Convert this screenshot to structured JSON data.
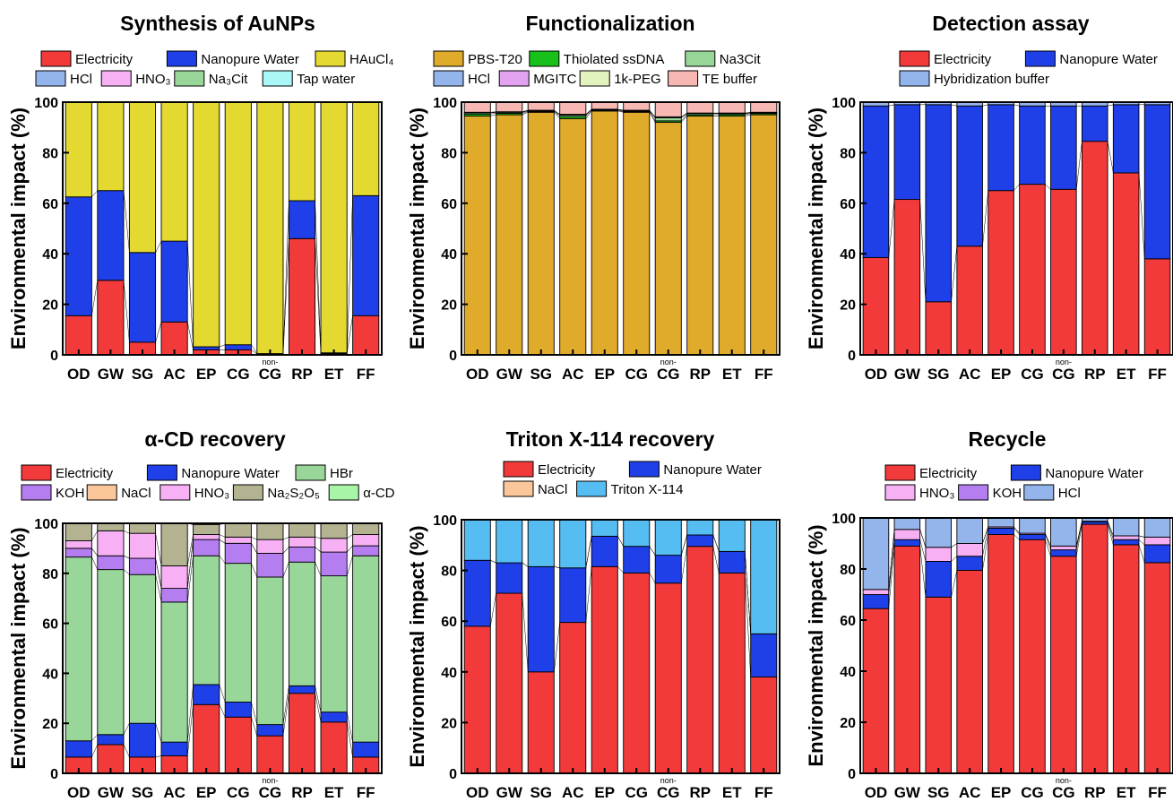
{
  "chart_data": [
    {
      "type": "bar",
      "stacked": true,
      "title": "Synthesis of AuNPs",
      "ylabel": "Environmental impact (%)",
      "ylim": [
        0,
        100
      ],
      "yticks": [
        "0",
        "20",
        "40",
        "60",
        "80",
        "100"
      ],
      "categories": [
        "OD",
        "GW",
        "SG",
        "AC",
        "EP",
        "CG",
        "CG",
        "RP",
        "ET",
        "FF"
      ],
      "category_superscripts": [
        "",
        "",
        "",
        "",
        "",
        "",
        "non-",
        "",
        "",
        ""
      ],
      "series": [
        {
          "name": "Electricity",
          "color": "#f23a3a",
          "values": [
            15.5,
            29.5,
            5,
            13,
            2,
            2,
            0.3,
            46,
            0.5,
            15.5
          ]
        },
        {
          "name": "Nanopure Water",
          "color": "#1f3fe8",
          "values": [
            47,
            35.5,
            35.5,
            32,
            1.2,
            2,
            0.2,
            15,
            0.3,
            47.5
          ]
        },
        {
          "name": "HAuCl₄",
          "color": "#e3d930",
          "values": [
            37.5,
            35,
            59.5,
            55,
            96.8,
            96,
            99.5,
            39,
            99.2,
            37
          ]
        },
        {
          "name": "HCl",
          "color": "#94b4ec",
          "values": [
            0,
            0,
            0,
            0,
            0,
            0,
            0,
            0,
            0,
            0
          ]
        },
        {
          "name": "HNO₃",
          "color": "#f7b0f4",
          "values": [
            0,
            0,
            0,
            0,
            0,
            0,
            0,
            0,
            0,
            0
          ]
        },
        {
          "name": "Na₃Cit",
          "color": "#98d69a",
          "values": [
            0,
            0,
            0,
            0,
            0,
            0,
            0,
            0,
            0,
            0
          ]
        },
        {
          "name": "Tap water",
          "color": "#a9f7f7",
          "values": [
            0,
            0,
            0,
            0,
            0,
            0,
            0,
            0,
            0,
            0
          ]
        }
      ],
      "legend_rows": [
        [
          "Electricity",
          "Nanopure Water",
          "HAuCl₄"
        ],
        [
          "HCl",
          "HNO₃",
          "Na₃Cit",
          "Tap water"
        ]
      ]
    },
    {
      "type": "bar",
      "stacked": true,
      "title": "Functionalization",
      "ylabel": "Environmental impact (%)",
      "ylim": [
        0,
        100
      ],
      "yticks": [
        "0",
        "20",
        "40",
        "60",
        "80",
        "100"
      ],
      "categories": [
        "OD",
        "GW",
        "SG",
        "AC",
        "EP",
        "CG",
        "CG",
        "RP",
        "ET",
        "FF"
      ],
      "category_superscripts": [
        "",
        "",
        "",
        "",
        "",
        "",
        "non-",
        "",
        "",
        ""
      ],
      "series": [
        {
          "name": "PBS-T20",
          "color": "#e0ab2b",
          "values": [
            94.5,
            95,
            96,
            93.5,
            96.5,
            96,
            92,
            94.5,
            94.5,
            95
          ]
        },
        {
          "name": "Thiolated ssDNA",
          "color": "#18c11a",
          "values": [
            0.8,
            0.6,
            0.3,
            0.8,
            0.3,
            0.3,
            0.6,
            0.5,
            0.6,
            0.5
          ]
        },
        {
          "name": "Na3Cit",
          "color": "#98d69a",
          "values": [
            0.5,
            0.4,
            0.3,
            0.6,
            0.3,
            0.3,
            1.2,
            0.5,
            0.4,
            0.3
          ]
        },
        {
          "name": "HCl",
          "color": "#94b4ec",
          "values": [
            0,
            0,
            0,
            0,
            0,
            0,
            0,
            0,
            0,
            0
          ]
        },
        {
          "name": "MGITC",
          "color": "#e2a2ef",
          "values": [
            0,
            0,
            0,
            0,
            0,
            0,
            0,
            0,
            0,
            0
          ]
        },
        {
          "name": "1k-PEG",
          "color": "#e2f3bf",
          "values": [
            0.2,
            0.2,
            0.2,
            0.3,
            0.1,
            0.2,
            0.4,
            0.2,
            0.2,
            0.2
          ]
        },
        {
          "name": "TE  buffer",
          "color": "#f7b7b3",
          "values": [
            4,
            3.8,
            3.2,
            4.8,
            2.8,
            3.2,
            5.8,
            4.3,
            4.3,
            4
          ]
        }
      ],
      "legend_rows": [
        [
          "PBS-T20",
          "Thiolated ssDNA",
          "Na3Cit"
        ],
        [
          "HCl",
          "MGITC",
          "1k-PEG",
          "TE  buffer"
        ]
      ]
    },
    {
      "type": "bar",
      "stacked": true,
      "title": "Detection assay",
      "ylabel": "Environmental impact (%)",
      "ylim": [
        0,
        100
      ],
      "yticks": [
        "0",
        "20",
        "40",
        "60",
        "80",
        "100"
      ],
      "categories": [
        "OD",
        "GW",
        "SG",
        "AC",
        "EP",
        "CG",
        "CG",
        "RP",
        "ET",
        "FF"
      ],
      "category_superscripts": [
        "",
        "",
        "",
        "",
        "",
        "",
        "non-",
        "",
        "",
        ""
      ],
      "series": [
        {
          "name": "Electricity",
          "color": "#f23a3a",
          "values": [
            38.5,
            61.5,
            21,
            43,
            65,
            67.5,
            65.5,
            84.5,
            72,
            38
          ]
        },
        {
          "name": "Nanopure Water",
          "color": "#1f3fe8",
          "values": [
            60,
            37.5,
            78,
            55.5,
            34,
            31,
            33,
            14,
            27,
            61
          ]
        },
        {
          "name": "Hybridization buffer",
          "color": "#94b4ec",
          "values": [
            1.5,
            1,
            1,
            1.5,
            1,
            1.5,
            1.5,
            1.5,
            1,
            1
          ]
        }
      ],
      "legend_rows": [
        [
          "Electricity",
          "Nanopure Water"
        ],
        [
          "Hybridization buffer"
        ]
      ]
    },
    {
      "type": "bar",
      "stacked": true,
      "title": "α-CD recovery",
      "ylabel": "Environmental impact (%)",
      "ylim": [
        0,
        100
      ],
      "yticks": [
        "0",
        "20",
        "40",
        "60",
        "80",
        "100"
      ],
      "categories": [
        "OD",
        "GW",
        "SG",
        "AC",
        "EP",
        "CG",
        "CG",
        "RP",
        "ET",
        "FF"
      ],
      "category_superscripts": [
        "",
        "",
        "",
        "",
        "",
        "",
        "non-",
        "",
        "",
        ""
      ],
      "series": [
        {
          "name": "Electricity",
          "color": "#f23a3a",
          "values": [
            6.5,
            11.5,
            6.5,
            7,
            27.5,
            22.5,
            15,
            32,
            20.5,
            6.5
          ]
        },
        {
          "name": "Nanopure Water",
          "color": "#1f3fe8",
          "values": [
            6.5,
            4,
            13.5,
            5.5,
            8,
            6,
            4.5,
            3,
            4,
            6
          ]
        },
        {
          "name": "HBr",
          "color": "#98d69a",
          "values": [
            73.5,
            66,
            59.5,
            56,
            51.5,
            55.5,
            59,
            49.5,
            54.5,
            74.5
          ]
        },
        {
          "name": "KOH",
          "color": "#b57ef0",
          "values": [
            3.5,
            5.5,
            6.5,
            5.5,
            6.5,
            8,
            9.5,
            6,
            9.5,
            4
          ]
        },
        {
          "name": "NaCl",
          "color": "#fbc69a",
          "values": [
            0,
            0,
            0,
            0,
            0,
            0,
            0,
            0,
            0,
            0
          ]
        },
        {
          "name": "HNO₃",
          "color": "#f7b0f4",
          "values": [
            3,
            10,
            10,
            9,
            2,
            2.5,
            5.5,
            4,
            5.5,
            4.5
          ]
        },
        {
          "name": "Na₂S₂O₅",
          "color": "#b3b392",
          "values": [
            7,
            3,
            4,
            17,
            4,
            5.5,
            6.5,
            5.5,
            6,
            4.5
          ]
        },
        {
          "name": "α-CD",
          "color": "#a8f5a8",
          "values": [
            0,
            0,
            0,
            0,
            0,
            0,
            0,
            0,
            0,
            0
          ]
        }
      ],
      "legend_rows": [
        [
          "Electricity",
          "Nanopure Water",
          "HBr"
        ],
        [
          "KOH",
          "NaCl",
          "HNO₃",
          "Na₂S₂O₅",
          "α-CD"
        ]
      ]
    },
    {
      "type": "bar",
      "stacked": true,
      "title": "Triton X-114 recovery",
      "ylabel": "Environmental impact (%)",
      "ylim": [
        0,
        100
      ],
      "yticks": [
        "0",
        "20",
        "40",
        "60",
        "80",
        "100"
      ],
      "categories": [
        "OD",
        "GW",
        "SG",
        "AC",
        "EP",
        "CG",
        "CG",
        "RP",
        "ET",
        "FF"
      ],
      "category_superscripts": [
        "",
        "",
        "",
        "",
        "",
        "",
        "non-",
        "",
        "",
        ""
      ],
      "series": [
        {
          "name": "Electricity",
          "color": "#f23a3a",
          "values": [
            58,
            71,
            40,
            59.5,
            81.5,
            79,
            75,
            89.5,
            79,
            38
          ]
        },
        {
          "name": "Nanopure Water",
          "color": "#1f3fe8",
          "values": [
            26,
            12,
            41.5,
            21.5,
            12,
            10.5,
            11,
            4.5,
            8.5,
            17
          ]
        },
        {
          "name": "NaCl",
          "color": "#fbc69a",
          "values": [
            0,
            0,
            0,
            0,
            0,
            0,
            0,
            0,
            0,
            0
          ]
        },
        {
          "name": "Triton X-114",
          "color": "#56bdf3",
          "values": [
            16,
            17,
            18.5,
            19,
            6.5,
            10.5,
            14,
            6,
            12.5,
            45
          ]
        }
      ],
      "legend_rows": [
        [
          "Electricity",
          "Nanopure Water"
        ],
        [
          "NaCl",
          "Triton X-114"
        ]
      ]
    },
    {
      "type": "bar",
      "stacked": true,
      "title": "Recycle",
      "ylabel": "Environmental impact (%)",
      "ylim": [
        0,
        100
      ],
      "yticks": [
        "0",
        "20",
        "40",
        "60",
        "80",
        "100"
      ],
      "categories": [
        "OD",
        "GW",
        "SG",
        "AC",
        "EP",
        "CG",
        "CG",
        "RP",
        "ET",
        "FF"
      ],
      "category_superscripts": [
        "",
        "",
        "",
        "",
        "",
        "",
        "non-",
        "",
        "",
        ""
      ],
      "series": [
        {
          "name": "Electricity",
          "color": "#f23a3a",
          "values": [
            64.5,
            89,
            69,
            79.5,
            93.5,
            91.5,
            85,
            97.5,
            89.5,
            82.5
          ]
        },
        {
          "name": "Nanopure Water",
          "color": "#1f3fe8",
          "values": [
            5.5,
            2.5,
            14,
            5.5,
            2.5,
            2,
            2.5,
            1,
            2,
            7
          ]
        },
        {
          "name": "HNO₃",
          "color": "#f7b0f4",
          "values": [
            2,
            4,
            5.5,
            5,
            0.5,
            0.5,
            1.5,
            0.2,
            1.5,
            3
          ]
        },
        {
          "name": "KOH",
          "color": "#b57ef0",
          "values": [
            0,
            0,
            0,
            0,
            0,
            0,
            0,
            0,
            0,
            0
          ]
        },
        {
          "name": "HCl",
          "color": "#94b4ec",
          "values": [
            28,
            4.5,
            11.5,
            10,
            3.5,
            6,
            11,
            1.3,
            7,
            7.5
          ]
        }
      ],
      "legend_rows": [
        [
          "Electricity",
          "Nanopure Water"
        ],
        [
          "HNO₃",
          "KOH",
          "HCl"
        ]
      ]
    }
  ]
}
